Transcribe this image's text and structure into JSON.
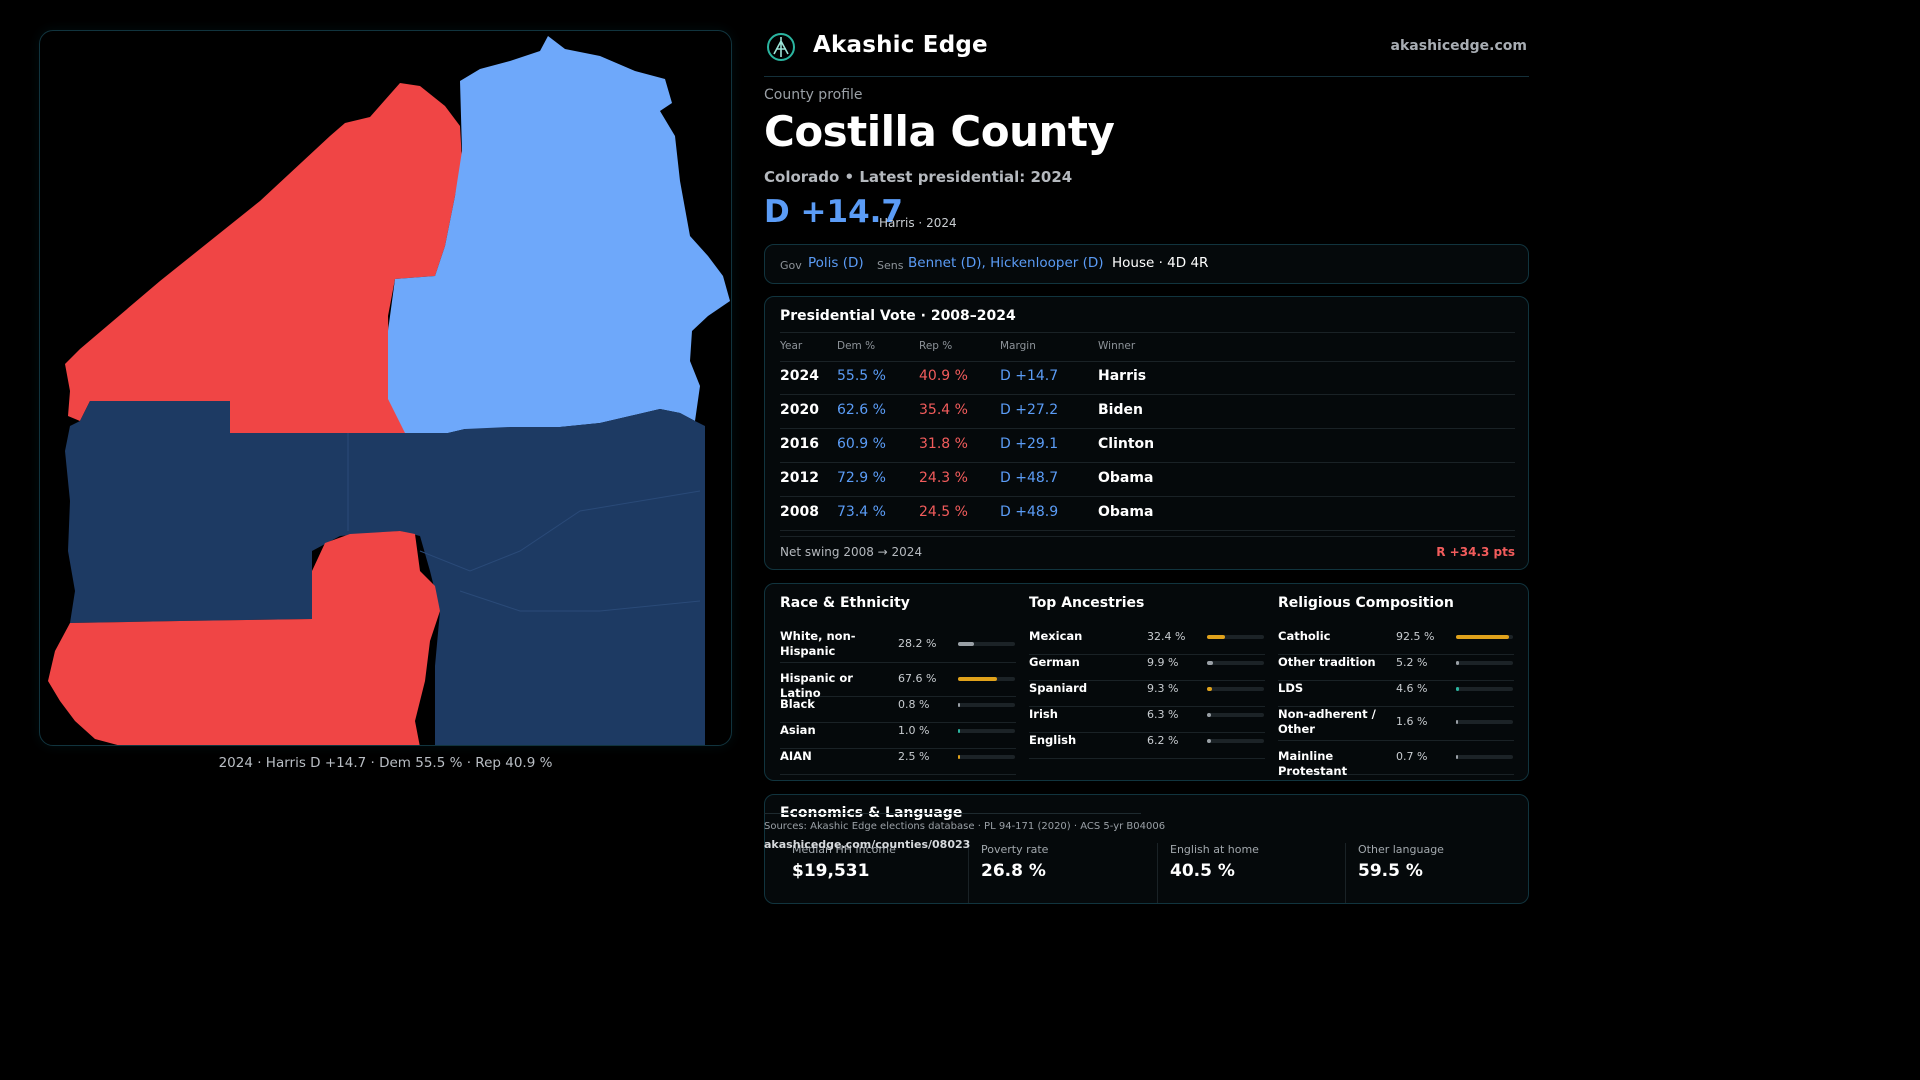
{
  "brand": {
    "name": "Akashic Edge",
    "site": "akashicedge.com"
  },
  "profile": {
    "eyebrow": "County profile",
    "title": "Costilla County",
    "subtitle": "Colorado • Latest presidential: 2024",
    "margin": "D +14.7",
    "margin_note": "Harris · 2024"
  },
  "officials": {
    "gov_label": "Gov",
    "gov": "Polis (D)",
    "sens_label": "Sens",
    "sens": "Bennet (D), Hickenlooper (D)",
    "house": "House · 4D 4R"
  },
  "presidential": {
    "title": "Presidential Vote · 2008–2024",
    "headers": {
      "year": "Year",
      "dem": "Dem %",
      "rep": "Rep %",
      "margin": "Margin",
      "winner": "Winner"
    },
    "rows": [
      {
        "year": "2024",
        "dem": "55.5 %",
        "rep": "40.9 %",
        "margin": "D +14.7",
        "winner": "Harris"
      },
      {
        "year": "2020",
        "dem": "62.6 %",
        "rep": "35.4 %",
        "margin": "D +27.2",
        "winner": "Biden"
      },
      {
        "year": "2016",
        "dem": "60.9 %",
        "rep": "31.8 %",
        "margin": "D +29.1",
        "winner": "Clinton"
      },
      {
        "year": "2012",
        "dem": "72.9 %",
        "rep": "24.3 %",
        "margin": "D +48.7",
        "winner": "Obama"
      },
      {
        "year": "2008",
        "dem": "73.4 %",
        "rep": "24.5 %",
        "margin": "D +48.9",
        "winner": "Obama"
      }
    ],
    "swing_label": "Net swing 2008 → 2024",
    "swing_value": "R +34.3 pts"
  },
  "race": {
    "title": "Race & Ethnicity",
    "items": [
      {
        "name": "White, non-Hispanic",
        "pct": "28.2 %",
        "value": 28.2,
        "color": "#9aa0a6"
      },
      {
        "name": "Hispanic or Latino",
        "pct": "67.6 %",
        "value": 67.6,
        "color": "#e0a21b"
      },
      {
        "name": "Black",
        "pct": "0.8 %",
        "value": 0.8,
        "color": "#9aa0a6"
      },
      {
        "name": "Asian",
        "pct": "1.0 %",
        "value": 1.0,
        "color": "#2bb5a0"
      },
      {
        "name": "AIAN",
        "pct": "2.5 %",
        "value": 2.5,
        "color": "#e0a21b"
      }
    ]
  },
  "ancestry": {
    "title": "Top Ancestries",
    "items": [
      {
        "name": "Mexican",
        "pct": "32.4 %",
        "value": 32.4,
        "color": "#e0a21b"
      },
      {
        "name": "German",
        "pct": "9.9 %",
        "value": 9.9,
        "color": "#9aa0a6"
      },
      {
        "name": "Spaniard",
        "pct": "9.3 %",
        "value": 9.3,
        "color": "#e0a21b"
      },
      {
        "name": "Irish",
        "pct": "6.3 %",
        "value": 6.3,
        "color": "#9aa0a6"
      },
      {
        "name": "English",
        "pct": "6.2 %",
        "value": 6.2,
        "color": "#9aa0a6"
      }
    ]
  },
  "religion": {
    "title": "Religious Composition",
    "items": [
      {
        "name": "Catholic",
        "pct": "92.5 %",
        "value": 92.5,
        "color": "#e0a21b"
      },
      {
        "name": "Other tradition",
        "pct": "5.2 %",
        "value": 5.2,
        "color": "#9aa0a6"
      },
      {
        "name": "LDS",
        "pct": "4.6 %",
        "value": 4.6,
        "color": "#2bb5a0"
      },
      {
        "name": "Non-adherent / Other",
        "pct": "1.6 %",
        "value": 1.6,
        "color": "#9aa0a6"
      },
      {
        "name": "Mainline Protestant",
        "pct": "0.7 %",
        "value": 0.7,
        "color": "#9aa0a6"
      }
    ]
  },
  "economics": {
    "title": "Economics & Language",
    "kpis": [
      {
        "label": "Median HH income",
        "value": "$19,531"
      },
      {
        "label": "Poverty rate",
        "value": "26.8 %"
      },
      {
        "label": "English at home",
        "value": "40.5 %"
      },
      {
        "label": "Other language",
        "value": "59.5 %"
      }
    ]
  },
  "sources": {
    "text": "Sources: Akashic Edge elections database · PL 94-171 (2020) · ACS 5-yr B04006",
    "url": "akashicedge.com/counties/08023"
  },
  "map": {
    "caption": "2024 · Harris D +14.7 · Dem 55.5 % · Rep 40.9 %",
    "colors": {
      "rep": "#f04545",
      "dem_light": "#6ea8fa",
      "dem_dark": "#1d3a63"
    }
  }
}
